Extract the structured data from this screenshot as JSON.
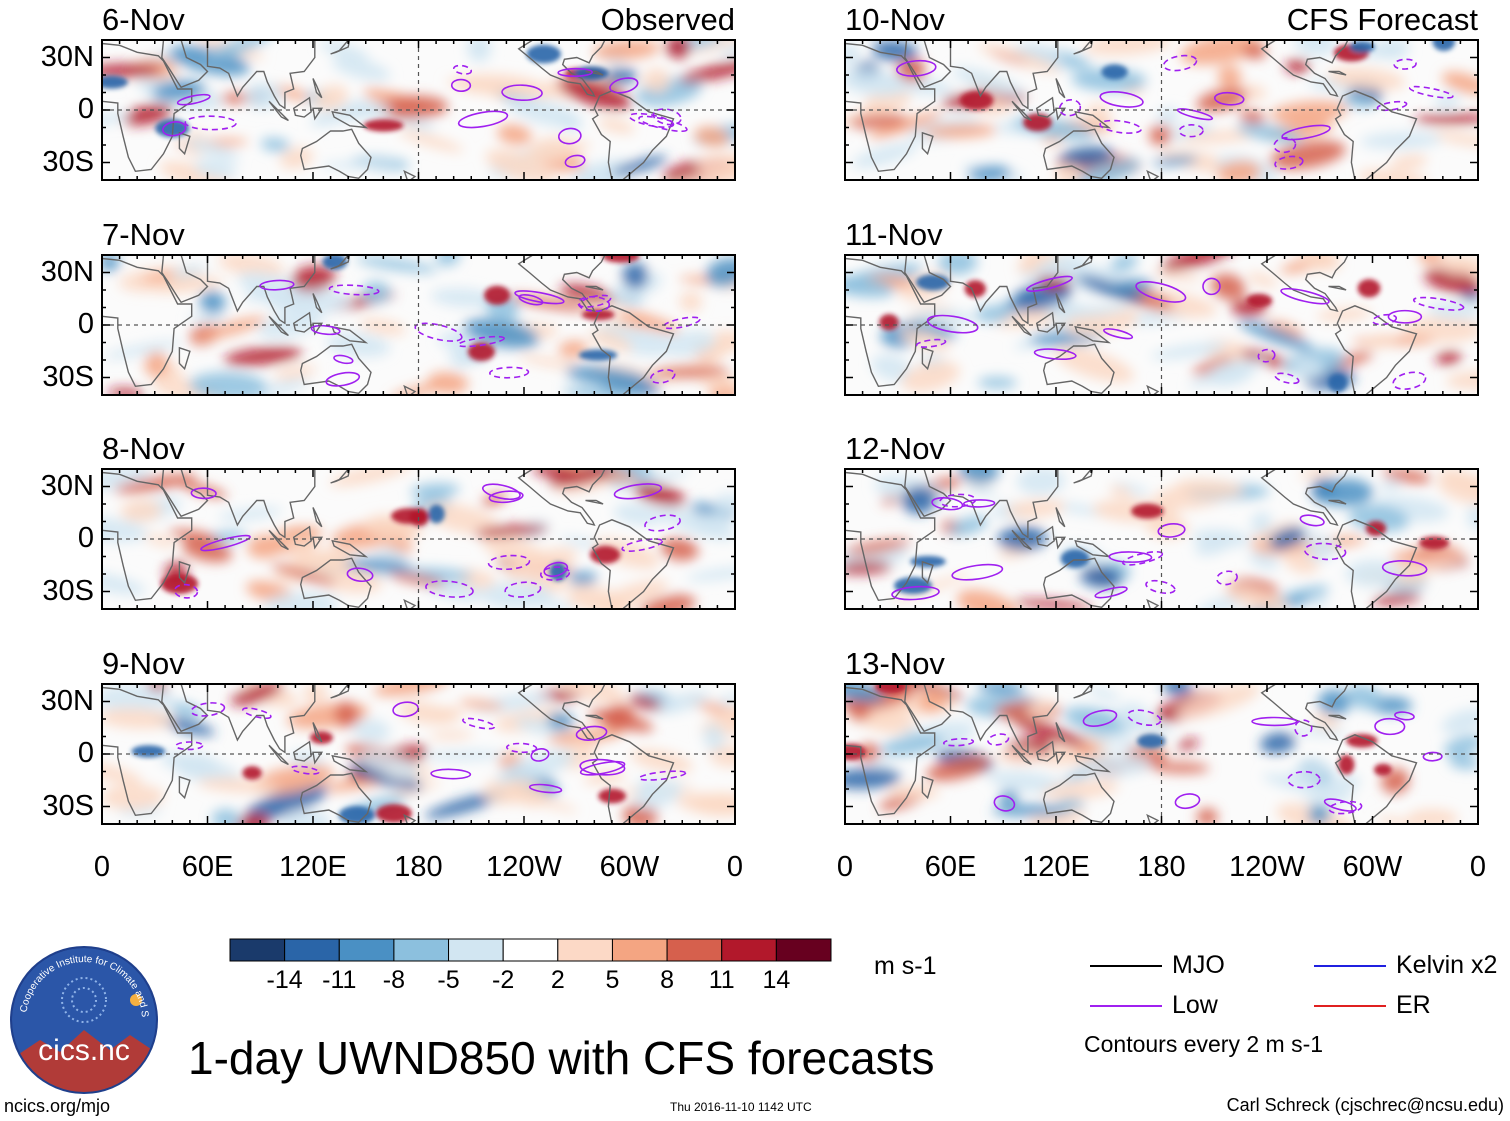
{
  "chart_data": {
    "type": "heatmap",
    "title": "1-day UWND850 with CFS forecasts",
    "variable": "UWND850",
    "units": "m s-1",
    "observed_label": "Observed",
    "forecast_label": "CFS Forecast",
    "panels": [
      {
        "date": "6-Nov",
        "kind": "observed"
      },
      {
        "date": "7-Nov",
        "kind": "observed"
      },
      {
        "date": "8-Nov",
        "kind": "observed"
      },
      {
        "date": "9-Nov",
        "kind": "observed"
      },
      {
        "date": "10-Nov",
        "kind": "forecast"
      },
      {
        "date": "11-Nov",
        "kind": "forecast"
      },
      {
        "date": "12-Nov",
        "kind": "forecast"
      },
      {
        "date": "13-Nov",
        "kind": "forecast"
      }
    ],
    "lat_ticks": [
      "30N",
      "0",
      "30S"
    ],
    "lat_tick_values": [
      30,
      0,
      -30
    ],
    "ylim": [
      -40,
      40
    ],
    "lon_ticks": [
      "0",
      "60E",
      "120E",
      "180",
      "120W",
      "60W",
      "0"
    ],
    "lon_tick_values": [
      0,
      60,
      120,
      180,
      240,
      300,
      360
    ],
    "xlim": [
      0,
      360
    ],
    "colorbar": {
      "labels": [
        "-14",
        "-11",
        "-8",
        "-5",
        "-2",
        "2",
        "5",
        "8",
        "11",
        "14"
      ],
      "levels": [
        -14,
        -11,
        -8,
        -5,
        -2,
        2,
        5,
        8,
        11,
        14
      ],
      "colors": [
        "#1a3a6b",
        "#2a65a8",
        "#4a90c4",
        "#8cc0de",
        "#d2e6f2",
        "#ffffff",
        "#fcd9c6",
        "#f4a582",
        "#d6604d",
        "#b2182b",
        "#67001f"
      ]
    },
    "legend": [
      {
        "label": "MJO",
        "color": "#000000"
      },
      {
        "label": "Low",
        "color": "#a020f0"
      },
      {
        "label": "Kelvin x2",
        "color": "#2020e0"
      },
      {
        "label": "ER",
        "color": "#e02020"
      }
    ],
    "contour_note": "Contours every 2 m s-1"
  },
  "footer": {
    "logo_text": "cics.nc",
    "logo_ring_text": "Cooperative Institute for Climate and Satellites",
    "left_url": "ncics.org/mjo",
    "timestamp": "Thu 2016-11-10 1142 UTC",
    "credit": "Carl Schreck (cjschrec@ncsu.edu)"
  },
  "colors": {
    "land_outline": "#666666",
    "equator_dash": "#555555",
    "frame": "#000000"
  }
}
